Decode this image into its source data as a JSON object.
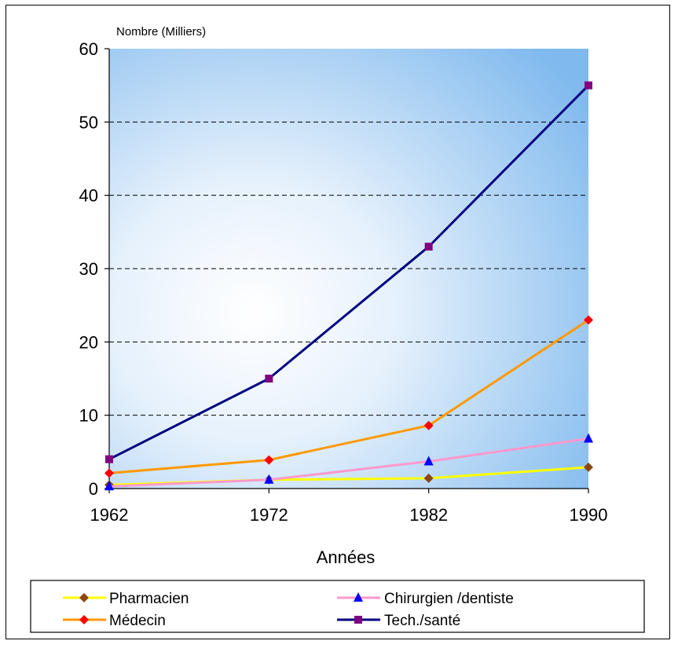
{
  "chart_data": {
    "type": "line",
    "ylabel": "Nombre (Milliers)",
    "xlabel": "Années",
    "categories": [
      "1962",
      "1972",
      "1982",
      "1990"
    ],
    "ylim": [
      0,
      60
    ],
    "yticks": [
      0,
      10,
      20,
      30,
      40,
      50,
      60
    ],
    "grid": "horizontal dashed",
    "legend_position": "bottom",
    "background": "gradient white-to-blue",
    "series": [
      {
        "name": "Pharmacien",
        "values": [
          0.5,
          1.2,
          1.4,
          2.9
        ],
        "color": "#ffff00",
        "marker": "diamond",
        "marker_color": "#8b4513"
      },
      {
        "name": "Chirurgien /dentiste",
        "values": [
          0.3,
          1.2,
          3.7,
          6.8
        ],
        "color": "#ff99cc",
        "marker": "triangle",
        "marker_color": "#0000ff"
      },
      {
        "name": "Médecin",
        "values": [
          2.1,
          3.9,
          8.6,
          23.0
        ],
        "color": "#ff9900",
        "marker": "diamond",
        "marker_color": "#ff0000"
      },
      {
        "name": "Tech./santé",
        "values": [
          4.0,
          15.0,
          33.0,
          55.0
        ],
        "color": "#000080",
        "marker": "square",
        "marker_color": "#800080"
      }
    ]
  }
}
